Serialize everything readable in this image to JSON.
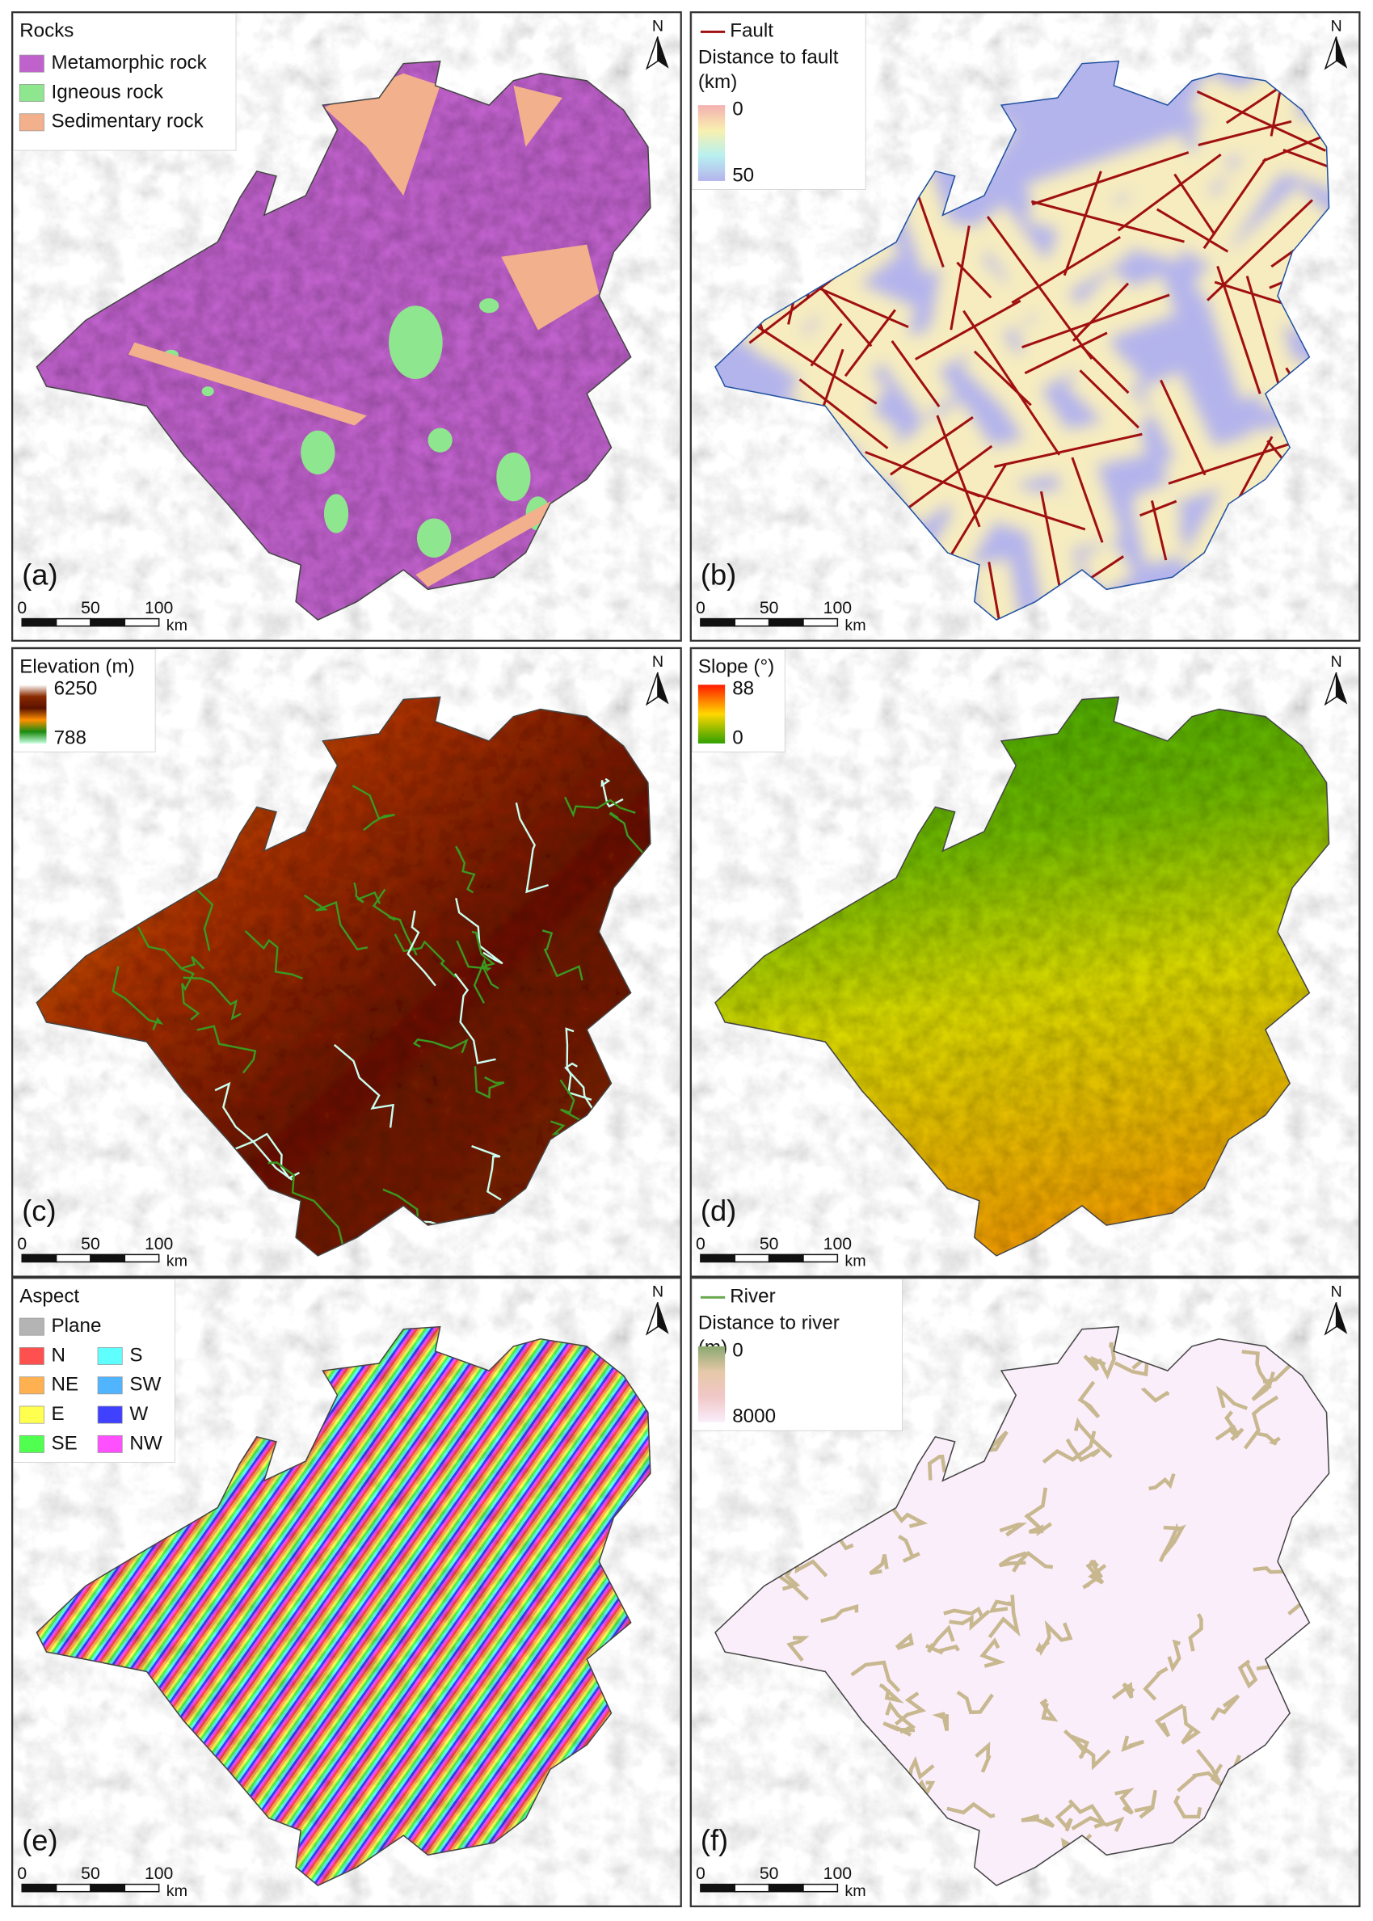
{
  "panels": [
    {
      "label": "(a)",
      "north": "N",
      "scale_bar": {
        "ticks": [
          0,
          50,
          100
        ],
        "unit": "km"
      },
      "legend": {
        "title": "Rocks",
        "items": [
          {
            "label": "Metamorphic rock",
            "color": "#c062cc"
          },
          {
            "label": "Igneous rock",
            "color": "#8ee68e"
          },
          {
            "label": "Sedimentary rock",
            "color": "#f2b08c"
          }
        ]
      }
    },
    {
      "label": "(b)",
      "north": "N",
      "scale_bar": {
        "ticks": [
          0,
          50,
          100
        ],
        "unit": "km"
      },
      "legend": {
        "line": {
          "label": "Fault",
          "color": "#a01010"
        },
        "title": "Distance to fault (km)",
        "colorbar": {
          "min_label": 0,
          "max_label": 50,
          "colors": [
            "#f4b0b0",
            "#f8f0b0",
            "#b8f0f0",
            "#b4b4ec"
          ]
        }
      }
    },
    {
      "label": "(c)",
      "north": "N",
      "scale_bar": {
        "ticks": [
          0,
          50,
          100
        ],
        "unit": "km"
      },
      "legend": {
        "title": "Elevation (m)",
        "colorbar": {
          "min_label": 6250,
          "max_label": 788,
          "colors": [
            "#ffffff",
            "#8a2a00",
            "#5a1200",
            "#ff9000",
            "#1a8a10",
            "#c8ffe0"
          ]
        }
      }
    },
    {
      "label": "(d)",
      "north": "N",
      "scale_bar": {
        "ticks": [
          0,
          50,
          100
        ],
        "unit": "km"
      },
      "legend": {
        "title": "Slope (°)",
        "colorbar": {
          "min_label": 88,
          "max_label": 0,
          "colors": [
            "#ff1a00",
            "#ffd800",
            "#30a000"
          ]
        }
      }
    },
    {
      "label": "(e)",
      "north": "N",
      "scale_bar": {
        "ticks": [
          0,
          50,
          100
        ],
        "unit": "km"
      },
      "legend": {
        "title": "Aspect",
        "items": [
          {
            "label": "Plane",
            "color": "#b4b4b4"
          },
          {
            "label": "N",
            "color": "#ff5050"
          },
          {
            "label": "NE",
            "color": "#ffb050"
          },
          {
            "label": "E",
            "color": "#ffff50"
          },
          {
            "label": "SE",
            "color": "#50ff50"
          },
          {
            "label": "S",
            "color": "#60ffff"
          },
          {
            "label": "SW",
            "color": "#50b4ff"
          },
          {
            "label": "W",
            "color": "#4040ff"
          },
          {
            "label": "NW",
            "color": "#ff50ff"
          }
        ]
      }
    },
    {
      "label": "(f)",
      "north": "N",
      "scale_bar": {
        "ticks": [
          0,
          50,
          100
        ],
        "unit": "km"
      },
      "legend": {
        "line": {
          "label": "River",
          "color": "#6aa84f"
        },
        "title": "Distance to river (m)",
        "colorbar": {
          "min_label": 0,
          "max_label": 8000,
          "colors": [
            "#8aa870",
            "#e6c8a8",
            "#f0c8c8",
            "#fbeefb"
          ]
        }
      }
    }
  ]
}
